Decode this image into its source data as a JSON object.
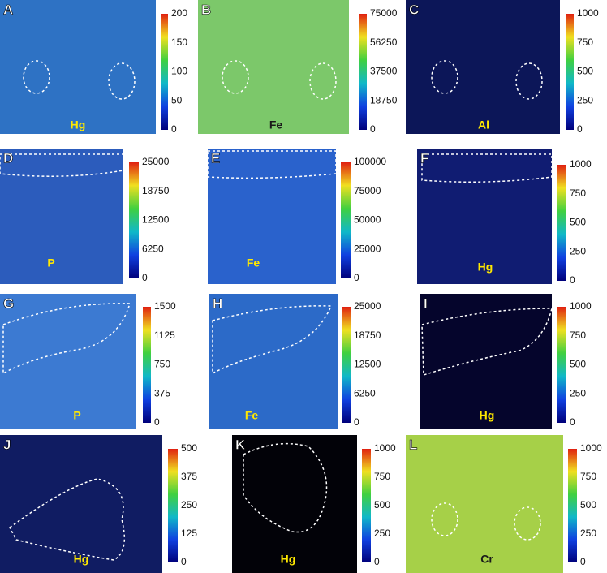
{
  "panels": [
    {
      "letter": "A",
      "element": "Hg",
      "colorbar_ticks": [
        200,
        150,
        100,
        50,
        0
      ]
    },
    {
      "letter": "B",
      "element": "Fe",
      "colorbar_ticks": [
        75000,
        56250,
        37500,
        18750,
        0
      ]
    },
    {
      "letter": "C",
      "element": "Al",
      "colorbar_ticks": [
        1000,
        750,
        500,
        250,
        0
      ]
    },
    {
      "letter": "D",
      "element": "P",
      "colorbar_ticks": [
        25000,
        18750,
        12500,
        6250,
        0
      ]
    },
    {
      "letter": "E",
      "element": "Fe",
      "colorbar_ticks": [
        100000,
        75000,
        50000,
        25000,
        0
      ]
    },
    {
      "letter": "F",
      "element": "Hg",
      "colorbar_ticks": [
        1000,
        750,
        500,
        250,
        0
      ]
    },
    {
      "letter": "G",
      "element": "P",
      "colorbar_ticks": [
        1500,
        1125,
        750,
        375,
        0
      ]
    },
    {
      "letter": "H",
      "element": "Fe",
      "colorbar_ticks": [
        25000,
        18750,
        12500,
        6250,
        0
      ]
    },
    {
      "letter": "I",
      "element": "Hg",
      "colorbar_ticks": [
        1000,
        750,
        500,
        250,
        0
      ]
    },
    {
      "letter": "J",
      "element": "Hg",
      "colorbar_ticks": [
        500,
        375,
        250,
        125,
        0
      ]
    },
    {
      "letter": "K",
      "element": "Hg",
      "colorbar_ticks": [
        1000,
        750,
        500,
        250,
        0
      ]
    },
    {
      "letter": "L",
      "element": "Cr",
      "colorbar_ticks": [
        1000,
        750,
        500,
        250,
        0
      ]
    }
  ]
}
